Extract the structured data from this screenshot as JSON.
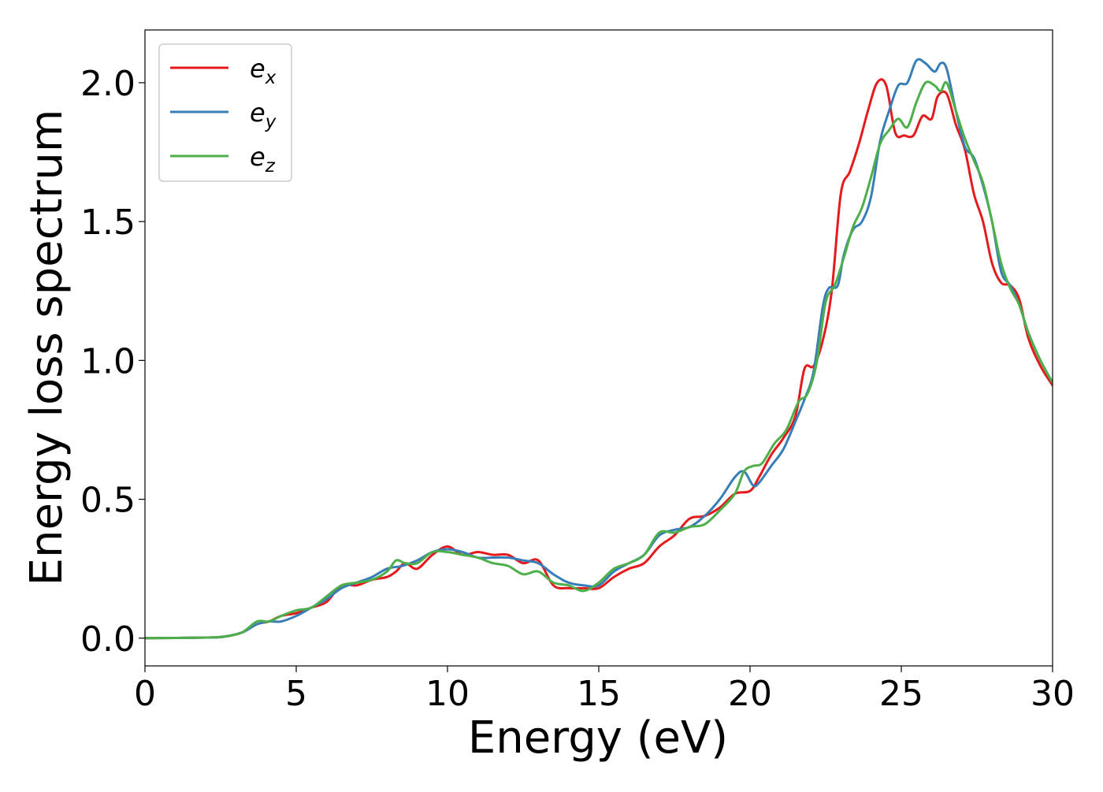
{
  "chart_data": {
    "type": "line",
    "xlabel": "Energy (eV)",
    "ylabel": "Energy loss spectrum",
    "xlim": [
      0,
      30
    ],
    "ylim": [
      -0.1,
      2.19
    ],
    "xticks": [
      0,
      5,
      10,
      15,
      20,
      25,
      30
    ],
    "xtick_labels": [
      "0",
      "5",
      "10",
      "15",
      "20",
      "25",
      "30"
    ],
    "yticks": [
      0.0,
      0.5,
      1.0,
      1.5,
      2.0
    ],
    "ytick_labels": [
      "0.0",
      "0.5",
      "1.0",
      "1.5",
      "2.0"
    ],
    "grid": false,
    "legend_position": "top-left",
    "series": [
      {
        "name": "e_x",
        "legend_base": "e",
        "legend_sub": "x",
        "color": "#e41a1c",
        "x": [
          0,
          2,
          2.6,
          3.2,
          3.7,
          4.1,
          4.5,
          5.0,
          5.5,
          6.0,
          6.5,
          7.0,
          7.5,
          8.0,
          8.3,
          8.6,
          9.0,
          9.5,
          10.0,
          10.5,
          11.0,
          11.5,
          12.0,
          12.5,
          13.0,
          13.5,
          14.0,
          14.5,
          15.0,
          15.5,
          16.0,
          16.5,
          17.0,
          17.5,
          18.0,
          18.5,
          19.0,
          19.5,
          20.0,
          20.3,
          20.7,
          21.1,
          21.5,
          21.8,
          22.1,
          22.4,
          22.7,
          23.0,
          23.3,
          23.6,
          23.9,
          24.2,
          24.5,
          24.8,
          25.1,
          25.4,
          25.7,
          26.0,
          26.2,
          26.5,
          26.8,
          27.1,
          27.4,
          27.7,
          28.0,
          28.3,
          28.6,
          28.9,
          29.2,
          29.6,
          30.0
        ],
        "y": [
          0,
          0.002,
          0.005,
          0.02,
          0.05,
          0.06,
          0.08,
          0.09,
          0.11,
          0.13,
          0.19,
          0.19,
          0.21,
          0.22,
          0.24,
          0.27,
          0.25,
          0.3,
          0.33,
          0.3,
          0.31,
          0.3,
          0.3,
          0.27,
          0.28,
          0.19,
          0.18,
          0.18,
          0.18,
          0.22,
          0.25,
          0.27,
          0.33,
          0.37,
          0.43,
          0.44,
          0.47,
          0.52,
          0.53,
          0.58,
          0.66,
          0.72,
          0.8,
          0.97,
          0.98,
          1.07,
          1.25,
          1.6,
          1.68,
          1.78,
          1.9,
          2.0,
          1.99,
          1.82,
          1.81,
          1.81,
          1.88,
          1.87,
          1.95,
          1.96,
          1.85,
          1.76,
          1.6,
          1.5,
          1.35,
          1.28,
          1.27,
          1.22,
          1.08,
          0.98,
          0.91
        ]
      },
      {
        "name": "e_y",
        "legend_base": "e",
        "legend_sub": "y",
        "color": "#377eb8",
        "x": [
          0,
          2,
          2.6,
          3.2,
          3.7,
          4.1,
          4.5,
          5.0,
          5.5,
          6.0,
          6.5,
          7.0,
          7.5,
          8.0,
          8.5,
          9.0,
          9.5,
          10.0,
          10.5,
          11.0,
          11.5,
          12.0,
          12.5,
          13.0,
          13.5,
          14.0,
          14.5,
          15.0,
          15.5,
          16.0,
          16.5,
          17.0,
          17.5,
          18.0,
          18.5,
          19.0,
          19.5,
          19.8,
          20.1,
          20.3,
          20.7,
          21.1,
          21.5,
          21.8,
          22.1,
          22.4,
          22.6,
          22.9,
          23.1,
          23.4,
          23.7,
          24.0,
          24.3,
          24.6,
          24.9,
          25.2,
          25.5,
          25.8,
          26.1,
          26.3,
          26.5,
          26.8,
          27.1,
          27.4,
          27.7,
          28.0,
          28.3,
          28.6,
          28.9,
          29.2,
          29.6,
          30.0
        ],
        "y": [
          0,
          0.002,
          0.005,
          0.02,
          0.05,
          0.06,
          0.06,
          0.08,
          0.11,
          0.14,
          0.18,
          0.2,
          0.22,
          0.25,
          0.26,
          0.28,
          0.31,
          0.32,
          0.31,
          0.29,
          0.29,
          0.29,
          0.28,
          0.27,
          0.23,
          0.2,
          0.19,
          0.19,
          0.24,
          0.27,
          0.3,
          0.37,
          0.39,
          0.4,
          0.44,
          0.5,
          0.58,
          0.6,
          0.55,
          0.56,
          0.62,
          0.68,
          0.78,
          0.86,
          0.96,
          1.19,
          1.26,
          1.27,
          1.38,
          1.47,
          1.5,
          1.59,
          1.79,
          1.9,
          1.99,
          2.0,
          2.08,
          2.07,
          2.04,
          2.07,
          2.05,
          1.9,
          1.77,
          1.73,
          1.63,
          1.5,
          1.32,
          1.27,
          1.2,
          1.1,
          1.0,
          0.92
        ]
      },
      {
        "name": "e_z",
        "legend_base": "e",
        "legend_sub": "z",
        "color": "#4daf4a",
        "x": [
          0,
          2,
          2.6,
          3.2,
          3.7,
          4.1,
          4.5,
          5.0,
          5.5,
          6.0,
          6.5,
          7.0,
          7.5,
          8.0,
          8.3,
          8.6,
          9.0,
          9.5,
          10.0,
          10.5,
          11.0,
          11.5,
          12.0,
          12.5,
          13.0,
          13.5,
          14.0,
          14.5,
          15.0,
          15.5,
          16.0,
          16.5,
          17.0,
          17.5,
          18.0,
          18.5,
          19.0,
          19.5,
          19.8,
          20.1,
          20.4,
          20.8,
          21.2,
          21.6,
          21.9,
          22.2,
          22.5,
          22.8,
          23.1,
          23.4,
          23.7,
          24.0,
          24.3,
          24.6,
          24.9,
          25.2,
          25.5,
          25.8,
          26.1,
          26.3,
          26.5,
          26.8,
          27.1,
          27.4,
          27.7,
          28.0,
          28.3,
          28.6,
          28.9,
          29.2,
          29.6,
          30.0
        ],
        "y": [
          0,
          0.002,
          0.006,
          0.02,
          0.06,
          0.06,
          0.08,
          0.1,
          0.11,
          0.15,
          0.19,
          0.2,
          0.21,
          0.24,
          0.28,
          0.27,
          0.27,
          0.31,
          0.31,
          0.3,
          0.29,
          0.27,
          0.26,
          0.23,
          0.24,
          0.2,
          0.19,
          0.17,
          0.2,
          0.25,
          0.27,
          0.3,
          0.38,
          0.38,
          0.4,
          0.41,
          0.46,
          0.52,
          0.6,
          0.62,
          0.63,
          0.7,
          0.75,
          0.85,
          0.88,
          0.99,
          1.21,
          1.27,
          1.37,
          1.48,
          1.55,
          1.66,
          1.78,
          1.83,
          1.87,
          1.84,
          1.93,
          2.0,
          1.99,
          1.97,
          2.0,
          1.9,
          1.8,
          1.72,
          1.64,
          1.5,
          1.35,
          1.26,
          1.2,
          1.1,
          1.0,
          0.92
        ]
      }
    ]
  }
}
